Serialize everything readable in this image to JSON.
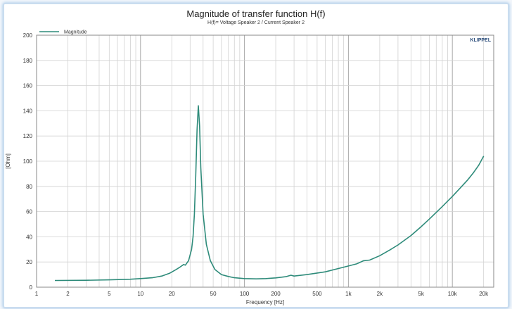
{
  "chart_data": {
    "type": "line",
    "title": "Magnitude of transfer function H(f)",
    "subtitle": "H(f)= Voltage Speaker 2 / Current Speaker 2",
    "xlabel": "Frequency [Hz]",
    "ylabel": "[Ohm]",
    "x_scale": "log",
    "xlim": [
      1,
      25000
    ],
    "ylim": [
      0,
      200
    ],
    "x_ticks": [
      {
        "value": 1,
        "label": "1"
      },
      {
        "value": 2,
        "label": "2"
      },
      {
        "value": 5,
        "label": "5"
      },
      {
        "value": 10,
        "label": "10"
      },
      {
        "value": 20,
        "label": "20"
      },
      {
        "value": 50,
        "label": "50"
      },
      {
        "value": 100,
        "label": "100"
      },
      {
        "value": 200,
        "label": "200"
      },
      {
        "value": 500,
        "label": "500"
      },
      {
        "value": 1000,
        "label": "1k"
      },
      {
        "value": 2000,
        "label": "2k"
      },
      {
        "value": 5000,
        "label": "5k"
      },
      {
        "value": 10000,
        "label": "10k"
      },
      {
        "value": 20000,
        "label": "20k"
      }
    ],
    "y_ticks": [
      0,
      20,
      40,
      60,
      80,
      100,
      120,
      140,
      160,
      180,
      200
    ],
    "grid": true,
    "legend_position": "top-left",
    "brand": "KLIPPEL",
    "series": [
      {
        "name": "Magnitude",
        "color": "#2e8b7a",
        "x": [
          1.5,
          3,
          5,
          8,
          10,
          13,
          16,
          19,
          22,
          24,
          26,
          27,
          29,
          31,
          32,
          33,
          34,
          35,
          36,
          37,
          38,
          40,
          43,
          47,
          52,
          60,
          70,
          80,
          100,
          130,
          160,
          200,
          250,
          280,
          300,
          400,
          600,
          800,
          1000,
          1200,
          1400,
          1600,
          2000,
          2500,
          3000,
          4000,
          5000,
          6000,
          8000,
          10000,
          12000,
          14000,
          16000,
          18000,
          20000
        ],
        "y": [
          5.3,
          5.5,
          5.8,
          6.3,
          6.8,
          7.5,
          8.8,
          11,
          14,
          16,
          18,
          17.5,
          21,
          30,
          40,
          58,
          88,
          125,
          144,
          128,
          95,
          58,
          34,
          21,
          14,
          10,
          8.5,
          7.5,
          6.8,
          6.6,
          6.8,
          7.4,
          8.3,
          9.5,
          8.8,
          10,
          12.2,
          14.8,
          16.8,
          18.5,
          21,
          21.5,
          25,
          29.5,
          33.5,
          41,
          48,
          54,
          64,
          72,
          79,
          85,
          91,
          97,
          104
        ]
      }
    ]
  }
}
